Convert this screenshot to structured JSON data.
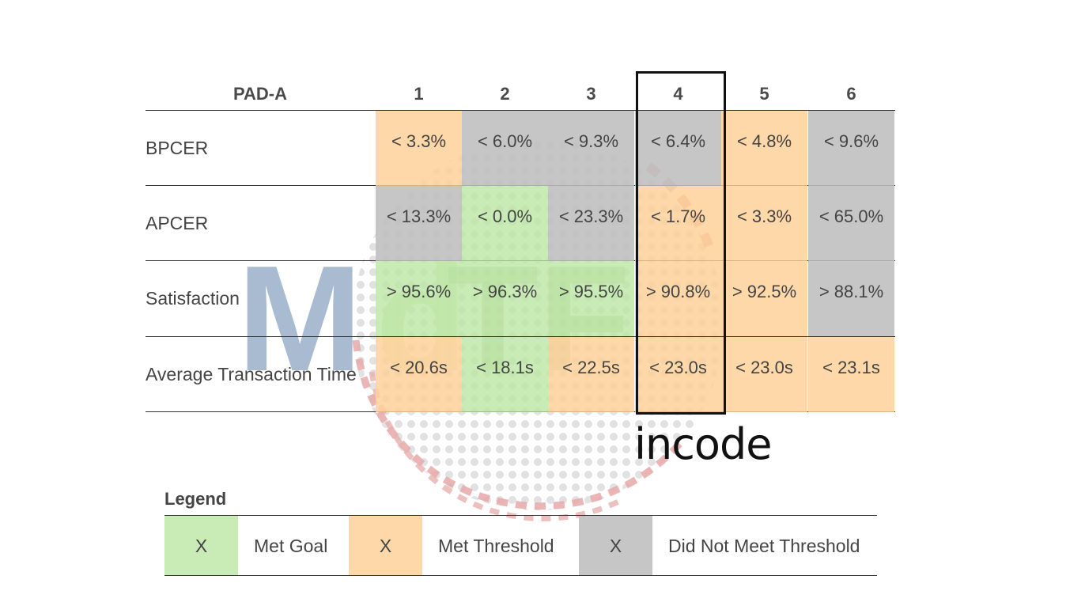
{
  "table": {
    "title": "PAD-A",
    "columns": [
      "1",
      "2",
      "3",
      "4",
      "5",
      "6"
    ],
    "rows": [
      {
        "label": "BPCER",
        "cells": [
          {
            "value": "< 3.3%",
            "status": "threshold"
          },
          {
            "value": "< 6.0%",
            "status": "fail"
          },
          {
            "value": "< 9.3%",
            "status": "fail"
          },
          {
            "value": "< 6.4%",
            "status": "fail"
          },
          {
            "value": "< 4.8%",
            "status": "threshold"
          },
          {
            "value": "< 9.6%",
            "status": "fail"
          }
        ]
      },
      {
        "label": "APCER",
        "cells": [
          {
            "value": "< 13.3%",
            "status": "fail"
          },
          {
            "value": "< 0.0%",
            "status": "goal"
          },
          {
            "value": "< 23.3%",
            "status": "fail"
          },
          {
            "value": "< 1.7%",
            "status": "threshold"
          },
          {
            "value": "< 3.3%",
            "status": "threshold"
          },
          {
            "value": "< 65.0%",
            "status": "fail"
          }
        ]
      },
      {
        "label": "Satisfaction",
        "cells": [
          {
            "value": "> 95.6%",
            "status": "goal"
          },
          {
            "value": "> 96.3%",
            "status": "goal"
          },
          {
            "value": "> 95.5%",
            "status": "goal"
          },
          {
            "value": "> 90.8%",
            "status": "threshold"
          },
          {
            "value": "> 92.5%",
            "status": "threshold"
          },
          {
            "value": "> 88.1%",
            "status": "fail"
          }
        ]
      },
      {
        "label": "Average Transaction Time",
        "cells": [
          {
            "value": "< 20.6s",
            "status": "threshold"
          },
          {
            "value": "< 18.1s",
            "status": "goal"
          },
          {
            "value": "< 22.5s",
            "status": "threshold"
          },
          {
            "value": "< 23.0s",
            "status": "threshold"
          },
          {
            "value": "< 23.0s",
            "status": "threshold"
          },
          {
            "value": "< 23.1s",
            "status": "threshold"
          }
        ]
      }
    ],
    "highlighted_column": "4"
  },
  "highlight_label": "incode",
  "watermark_text": "MdTF",
  "legend": {
    "title": "Legend",
    "items": [
      {
        "swatch": "X",
        "label": "Met Goal",
        "status": "goal"
      },
      {
        "swatch": "X",
        "label": "Met Threshold",
        "status": "threshold"
      },
      {
        "swatch": "X",
        "label": "Did Not Meet Threshold",
        "status": "fail"
      }
    ]
  },
  "colors": {
    "goal": "#c9ebb5",
    "threshold": "#fdd6a6",
    "fail": "#c4c4c4",
    "text": "#444444"
  }
}
